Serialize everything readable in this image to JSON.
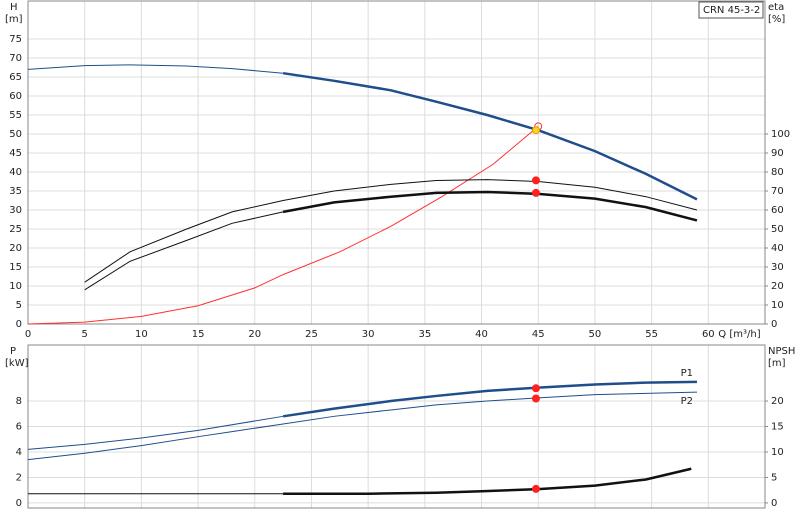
{
  "chart_data": [
    {
      "type": "line",
      "title": "CRN 45-3-2",
      "y_label": "H",
      "y_unit": "[m]",
      "y2_label": "eta",
      "y2_unit": "[%]",
      "x_label": "Q [m³/h]",
      "xlim": [
        0,
        65
      ],
      "xticks": [
        0,
        5,
        10,
        15,
        20,
        25,
        30,
        35,
        40,
        45,
        50,
        55,
        60
      ],
      "xtick_labels": true,
      "ylim": [
        0,
        85
      ],
      "yticks": [
        0,
        5,
        10,
        15,
        20,
        25,
        30,
        35,
        40,
        45,
        50,
        55,
        60,
        65,
        70,
        75
      ],
      "y2lim": [
        0,
        170
      ],
      "y2ticks": [
        0,
        10,
        20,
        30,
        40,
        50,
        60,
        70,
        80,
        90,
        100
      ],
      "grid": true,
      "series": [
        {
          "color": "#1f4e8c",
          "width": 1,
          "x": [
            0,
            5,
            9,
            14,
            18,
            22.5
          ],
          "values": [
            67,
            68,
            68.2,
            67.9,
            67.2,
            66
          ]
        },
        {
          "color": "#1f4e8c",
          "width": 2.5,
          "x": [
            22.5,
            27,
            32,
            36,
            40.5,
            45,
            50,
            54.5,
            59
          ],
          "values": [
            66,
            64,
            61.5,
            58.5,
            55,
            51,
            45.5,
            39.5,
            32.8
          ]
        },
        {
          "color": "#ff3030",
          "width": 1,
          "x": [
            0,
            5,
            10,
            15,
            20,
            22.5,
            27.5,
            32,
            36.5,
            41,
            45
          ],
          "values": [
            0,
            0.5,
            2,
            4.8,
            9.5,
            13,
            19,
            25.7,
            33.5,
            42,
            52
          ]
        },
        {
          "color": "#111111",
          "width": 1,
          "axis": "y2",
          "x": [
            5,
            9,
            14,
            18,
            22.5,
            27,
            32,
            36,
            40.5,
            45,
            50,
            54.5,
            59
          ],
          "values": [
            22,
            38,
            50,
            59,
            65,
            70,
            73.5,
            75.5,
            76,
            75,
            72,
            67,
            60
          ]
        },
        {
          "color": "#111111",
          "width": 1,
          "axis": "y2",
          "x": [
            5,
            9,
            14,
            18,
            22.5
          ],
          "values": [
            18,
            33,
            44,
            53,
            59
          ]
        },
        {
          "color": "#111111",
          "width": 2.5,
          "axis": "y2",
          "x": [
            22.5,
            27,
            32,
            36,
            40.5,
            45,
            50,
            54.5,
            59
          ],
          "values": [
            59,
            64,
            67,
            69,
            69.5,
            68.5,
            66,
            61.5,
            54.5
          ]
        }
      ],
      "points": [
        {
          "x": 45,
          "value": 52,
          "color": "#ff3030",
          "hollow": true
        },
        {
          "x": 44.8,
          "value": 51,
          "color": "#ffd21f",
          "hollow": false
        },
        {
          "x": 44.8,
          "value": 75.6,
          "color": "#ff2020",
          "axis": "y2",
          "hollow": false
        },
        {
          "x": 44.8,
          "value": 69,
          "color": "#ff2020",
          "axis": "y2",
          "hollow": false
        }
      ]
    },
    {
      "type": "line",
      "y_label": "P",
      "y_unit": "[kW]",
      "y2_label": "NPSH",
      "y2_unit": "[m]",
      "xlim": [
        0,
        65
      ],
      "xticks": [
        0,
        5,
        10,
        15,
        20,
        25,
        30,
        35,
        40,
        45,
        50,
        55,
        60
      ],
      "xtick_labels": false,
      "ylim": [
        -0.4,
        12.4
      ],
      "yticks": [
        0,
        2,
        4,
        6,
        8
      ],
      "y2lim": [
        -1,
        31
      ],
      "y2ticks": [
        0,
        5,
        10,
        15,
        20
      ],
      "grid": true,
      "series": [
        {
          "color": "#1f4e8c",
          "width": 1,
          "x": [
            0,
            5,
            10,
            15,
            22.5
          ],
          "values": [
            4.2,
            4.6,
            5.1,
            5.7,
            6.8
          ]
        },
        {
          "name": "P1",
          "color": "#1f4e8c",
          "width": 2.5,
          "x": [
            22.5,
            27,
            32,
            36,
            40.5,
            45,
            50,
            54.5,
            59
          ],
          "values": [
            6.8,
            7.4,
            8.0,
            8.4,
            8.8,
            9.05,
            9.3,
            9.45,
            9.5
          ]
        },
        {
          "name": "P2",
          "color": "#1f4e8c",
          "width": 1,
          "x": [
            0,
            5,
            10,
            15,
            18,
            22.5,
            27,
            32,
            36,
            40.5,
            45,
            50,
            54.5,
            59
          ],
          "values": [
            3.4,
            3.9,
            4.5,
            5.2,
            5.6,
            6.2,
            6.8,
            7.3,
            7.7,
            8.0,
            8.25,
            8.5,
            8.6,
            8.7
          ]
        },
        {
          "color": "#111111",
          "width": 1,
          "axis": "y2",
          "x": [
            0,
            22.5
          ],
          "values": [
            1.8,
            1.8
          ]
        },
        {
          "color": "#111111",
          "width": 2.5,
          "axis": "y2",
          "x": [
            22.5,
            30,
            36,
            40,
            45,
            50,
            54.5,
            58.5
          ],
          "values": [
            1.8,
            1.8,
            2.0,
            2.3,
            2.7,
            3.4,
            4.6,
            6.7
          ]
        }
      ],
      "points": [
        {
          "x": 44.8,
          "value": 9.0,
          "color": "#ff2020",
          "hollow": false
        },
        {
          "x": 44.8,
          "value": 8.2,
          "color": "#ff2020",
          "hollow": false
        },
        {
          "x": 44.8,
          "value": 2.75,
          "color": "#ff2020",
          "axis": "y2",
          "hollow": false
        }
      ]
    }
  ]
}
